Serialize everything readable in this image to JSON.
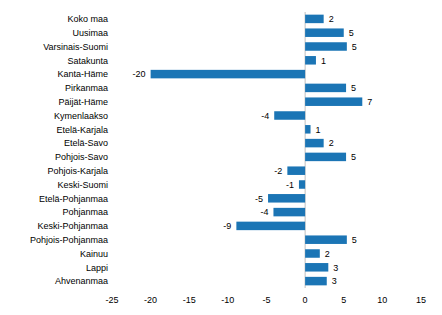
{
  "chart_data": {
    "type": "bar",
    "orientation": "horizontal",
    "categories": [
      "Koko maa",
      "Uusimaa",
      "Varsinais-Suomi",
      "Satakunta",
      "Kanta-Häme",
      "Pirkanmaa",
      "Päijät-Häme",
      "Kymenlaakso",
      "Etelä-Karjala",
      "Etelä-Savo",
      "Pohjois-Savo",
      "Pohjois-Karjala",
      "Keski-Suomi",
      "Etelä-Pohjanmaa",
      "Pohjanmaa",
      "Keski-Pohjanmaa",
      "Pohjois-Pohjanmaa",
      "Kainuu",
      "Lappi",
      "Ahvenanmaa"
    ],
    "values": [
      2.4,
      5.0,
      5.4,
      1.4,
      -20.0,
      5.3,
      7.4,
      -4.0,
      0.7,
      2.4,
      5.3,
      -2.3,
      -0.8,
      -4.8,
      -4.1,
      -8.9,
      5.4,
      1.9,
      3.0,
      2.8
    ],
    "value_labels": [
      "2",
      "5",
      "5",
      "1",
      "-20",
      "5",
      "7",
      "-4",
      "1",
      "2",
      "5",
      "-2",
      "-1",
      "-5",
      "-4",
      "-9",
      "5",
      "2",
      "3",
      "3"
    ],
    "data_labels": true,
    "color": "#1b75b5",
    "xlim": [
      -25,
      15
    ],
    "xticks": [
      -25,
      -20,
      -15,
      -10,
      -5,
      0,
      5,
      10,
      15
    ],
    "grid": false
  }
}
